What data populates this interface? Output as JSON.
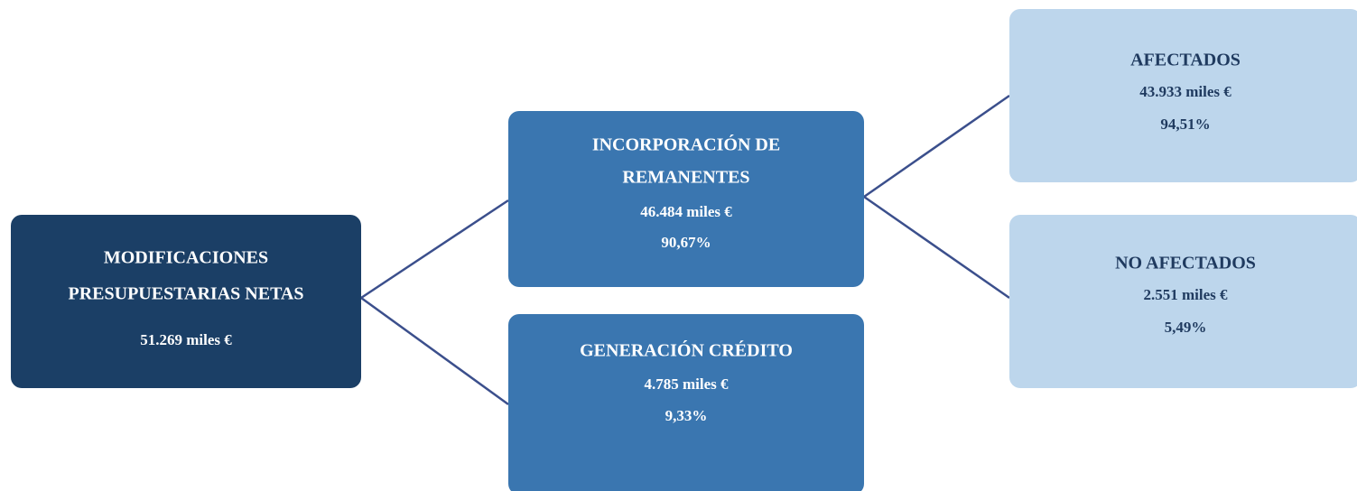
{
  "nodes": [
    {
      "lines": [
        "MODIFICACIONES",
        "PRESUPUESTARIAS NETAS",
        "51.269 miles €"
      ]
    },
    {
      "lines": [
        "INCORPORACIÓN DE",
        "REMANENTES",
        "46.484 miles €",
        "90,67%"
      ]
    },
    {
      "lines": [
        "GENERACIÓN CRÉDITO",
        "4.785 miles €",
        "9,33%"
      ]
    },
    {
      "lines": [
        "AFECTADOS",
        "43.933 miles €",
        "94,51%"
      ]
    },
    {
      "lines": [
        "NO AFECTADOS",
        "2.551 miles €",
        "5,49%"
      ]
    }
  ]
}
